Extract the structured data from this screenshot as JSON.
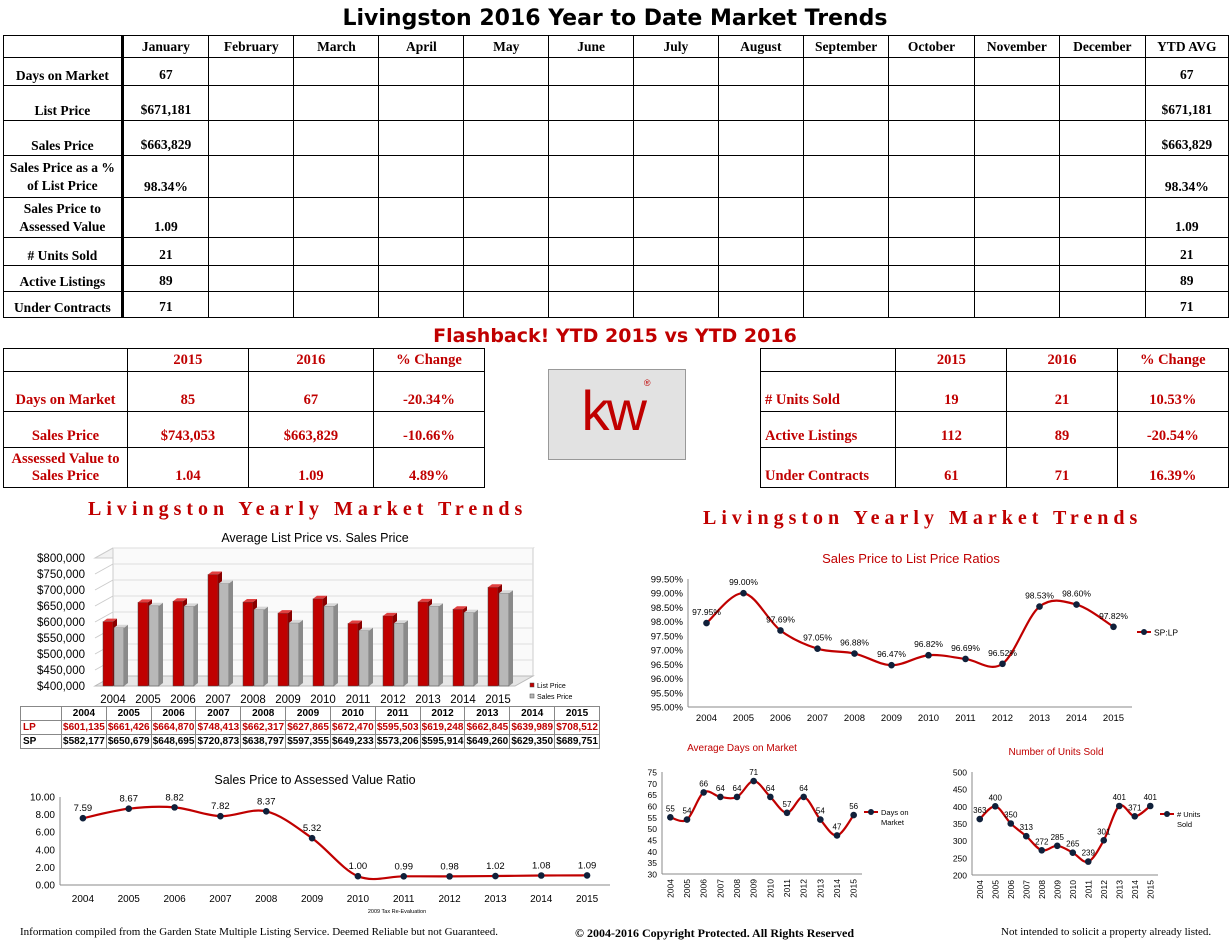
{
  "title": "Livingston 2016 Year to Date Market Trends",
  "ytd_table": {
    "columns": [
      "January",
      "February",
      "March",
      "April",
      "May",
      "June",
      "July",
      "August",
      "September",
      "October",
      "November",
      "December",
      "YTD AVG"
    ],
    "rows": [
      {
        "label": "Days on Market",
        "values": [
          "67",
          "",
          "",
          "",
          "",
          "",
          "",
          "",
          "",
          "",
          "",
          "",
          "67"
        ]
      },
      {
        "label": "List Price",
        "values": [
          "$671,181",
          "",
          "",
          "",
          "",
          "",
          "",
          "",
          "",
          "",
          "",
          "",
          "$671,181"
        ]
      },
      {
        "label": "Sales Price",
        "values": [
          "$663,829",
          "",
          "",
          "",
          "",
          "",
          "",
          "",
          "",
          "",
          "",
          "",
          "$663,829"
        ]
      },
      {
        "label": "Sales Price as a % of List Price",
        "values": [
          "98.34%",
          "",
          "",
          "",
          "",
          "",
          "",
          "",
          "",
          "",
          "",
          "",
          "98.34%"
        ]
      },
      {
        "label": "Sales Price to Assessed Value",
        "values": [
          "1.09",
          "",
          "",
          "",
          "",
          "",
          "",
          "",
          "",
          "",
          "",
          "",
          "1.09"
        ]
      },
      {
        "label": "# Units Sold",
        "values": [
          "21",
          "",
          "",
          "",
          "",
          "",
          "",
          "",
          "",
          "",
          "",
          "",
          "21"
        ]
      },
      {
        "label": "Active Listings",
        "values": [
          "89",
          "",
          "",
          "",
          "",
          "",
          "",
          "",
          "",
          "",
          "",
          "",
          "89"
        ]
      },
      {
        "label": "Under Contracts",
        "values": [
          "71",
          "",
          "",
          "",
          "",
          "",
          "",
          "",
          "",
          "",
          "",
          "",
          "71"
        ]
      }
    ]
  },
  "flashback_title": "Flashback!  YTD 2015 vs YTD 2016",
  "compare_left": {
    "headers": [
      "",
      "2015",
      "2016",
      "% Change"
    ],
    "rows": [
      {
        "label": "Days on Market",
        "v2015": "85",
        "v2016": "67",
        "change": "-20.34%"
      },
      {
        "label": "Sales Price",
        "v2015": "$743,053",
        "v2016": "$663,829",
        "change": "-10.66%"
      },
      {
        "label": "Assessed Value to Sales Price",
        "v2015": "1.04",
        "v2016": "1.09",
        "change": "4.89%"
      }
    ]
  },
  "compare_right": {
    "headers": [
      "",
      "2015",
      "2016",
      "% Change"
    ],
    "rows": [
      {
        "label": "# Units Sold",
        "v2015": "19",
        "v2016": "21",
        "change": "10.53%"
      },
      {
        "label": "Active Listings",
        "v2015": "112",
        "v2016": "89",
        "change": "-20.54%"
      },
      {
        "label": "Under Contracts",
        "v2015": "61",
        "v2016": "71",
        "change": "16.39%"
      }
    ]
  },
  "logo": {
    "text": "kw",
    "reg": "®"
  },
  "banner_left": "Livingston Yearly Market Trends",
  "banner_right": "Livingston Yearly Market Trends",
  "footer": {
    "left": "Information compiled from the Garden State Multiple Listing Service.  Deemed Reliable but not Guaranteed.",
    "center": "© 2004-2016 Copyright Protected.  All Rights Reserved",
    "right": "Not intended to solicit a property already listed."
  },
  "colors": {
    "red": "#c00000",
    "gray": "#b0b0b0",
    "navy": "#10203a"
  },
  "chart_data": [
    {
      "id": "lp_sp",
      "type": "bar",
      "title": "Average List Price vs. Sales Price",
      "categories": [
        "2004",
        "2005",
        "2006",
        "2007",
        "2008",
        "2009",
        "2010",
        "2011",
        "2012",
        "2013",
        "2014",
        "2015"
      ],
      "series": [
        {
          "name": "List Price",
          "short": "LP",
          "values": [
            601135,
            661426,
            664870,
            748413,
            662317,
            627865,
            672470,
            595503,
            619248,
            662845,
            639989,
            708512
          ],
          "labels": [
            "$601,135",
            "$661,426",
            "$664,870",
            "$748,413",
            "$662,317",
            "$627,865",
            "$672,470",
            "$595,503",
            "$619,248",
            "$662,845",
            "$639,989",
            "$708,512"
          ]
        },
        {
          "name": "Sales Price",
          "short": "SP",
          "values": [
            582177,
            650679,
            648695,
            720873,
            638797,
            597355,
            649233,
            573206,
            595914,
            649260,
            629350,
            689751
          ],
          "labels": [
            "$582,177",
            "$650,679",
            "$648,695",
            "$720,873",
            "$638,797",
            "$597,355",
            "$649,233",
            "$573,206",
            "$595,914",
            "$649,260",
            "$629,350",
            "$689,751"
          ]
        }
      ],
      "yticks": [
        "$400,000",
        "$450,000",
        "$500,000",
        "$550,000",
        "$600,000",
        "$650,000",
        "$700,000",
        "$750,000",
        "$800,000"
      ],
      "ylim": [
        400000,
        800000
      ],
      "legend": "right"
    },
    {
      "id": "sp_av",
      "type": "line",
      "title": "Sales Price to Assessed Value Ratio",
      "categories": [
        "2004",
        "2005",
        "2006",
        "2007",
        "2008",
        "2009",
        "2010",
        "2011",
        "2012",
        "2013",
        "2014",
        "2015"
      ],
      "values": [
        7.59,
        8.67,
        8.82,
        7.82,
        8.37,
        5.32,
        1.0,
        0.99,
        0.98,
        1.02,
        1.08,
        1.09
      ],
      "labels": [
        "7.59",
        "8.67",
        "8.82",
        "7.82",
        "8.37",
        "5.32",
        "1.00",
        "0.99",
        "0.98",
        "1.02",
        "1.08",
        "1.09"
      ],
      "yticks": [
        "0.00",
        "2.00",
        "4.00",
        "6.00",
        "8.00",
        "10.00"
      ],
      "ylim": [
        0,
        10
      ],
      "annotation": "2009 Tax Re-Evaluation"
    },
    {
      "id": "sp_lp",
      "type": "line",
      "title": "Sales Price to List Price Ratios",
      "categories": [
        "2004",
        "2005",
        "2006",
        "2007",
        "2008",
        "2009",
        "2010",
        "2011",
        "2012",
        "2013",
        "2014",
        "2015"
      ],
      "series": [
        {
          "name": "SP:LP",
          "values": [
            97.95,
            99.0,
            97.69,
            97.05,
            96.88,
            96.47,
            96.82,
            96.69,
            96.52,
            98.53,
            98.6,
            97.82
          ]
        }
      ],
      "labels": [
        "97.95%",
        "99.00%",
        "97.69%",
        "97.05%",
        "96.88%",
        "96.47%",
        "96.82%",
        "96.69%",
        "96.52%",
        "98.53%",
        "98.60%",
        "97.82%"
      ],
      "yticks": [
        "95.00%",
        "95.50%",
        "96.00%",
        "96.50%",
        "97.00%",
        "97.50%",
        "98.00%",
        "98.50%",
        "99.00%",
        "99.50%"
      ],
      "ylim": [
        95,
        99.5
      ],
      "legend": "right"
    },
    {
      "id": "dom",
      "type": "line",
      "title": "Average Days on Market",
      "categories": [
        "2004",
        "2005",
        "2006",
        "2007",
        "2008",
        "2009",
        "2010",
        "2011",
        "2012",
        "2013",
        "2014",
        "2015"
      ],
      "series": [
        {
          "name": "Days on Market",
          "values": [
            55,
            54,
            66,
            64,
            64,
            71,
            64,
            57,
            64,
            54,
            47,
            56
          ]
        }
      ],
      "yticks": [
        "30",
        "35",
        "40",
        "45",
        "50",
        "55",
        "60",
        "65",
        "70",
        "75"
      ],
      "ylim": [
        30,
        75
      ],
      "legend": "right"
    },
    {
      "id": "units",
      "type": "line",
      "title": "Number of Units Sold",
      "categories": [
        "2004",
        "2005",
        "2006",
        "2007",
        "2008",
        "2009",
        "2010",
        "2011",
        "2012",
        "2013",
        "2014",
        "2015"
      ],
      "series": [
        {
          "name": "# Units Sold",
          "values": [
            363,
            400,
            350,
            313,
            272,
            285,
            265,
            239,
            301,
            401,
            371,
            401
          ]
        }
      ],
      "yticks": [
        "200",
        "250",
        "300",
        "350",
        "400",
        "450",
        "500"
      ],
      "ylim": [
        200,
        500
      ],
      "legend": "right"
    }
  ]
}
